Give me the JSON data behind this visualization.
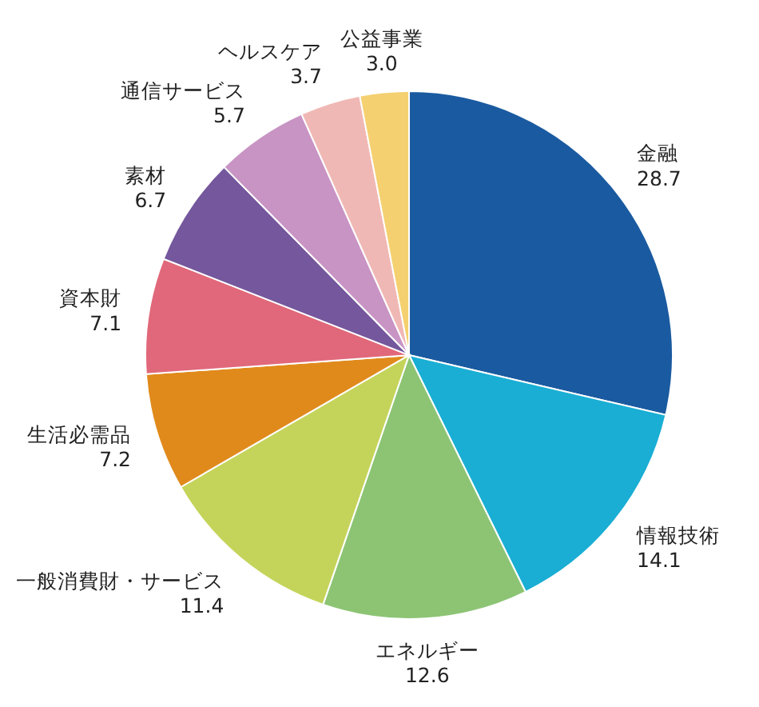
{
  "chart_data": {
    "type": "pie",
    "categories": [
      "金融",
      "情報技術",
      "エネルギー",
      "一般消費財・サービス",
      "生活必需品",
      "資本財",
      "素材",
      "通信サービス",
      "ヘルスケア",
      "公益事業"
    ],
    "values": [
      28.7,
      14.1,
      12.6,
      11.4,
      7.2,
      7.1,
      6.7,
      5.7,
      3.7,
      3.0
    ],
    "colors": [
      "#1a5aa0",
      "#1aaed4",
      "#8cc474",
      "#c4d45a",
      "#e08a1c",
      "#e0687a",
      "#74579c",
      "#c894c4",
      "#f0b8b4",
      "#f4d070"
    ],
    "value_labels": [
      "28.7",
      "14.1",
      "12.6",
      "11.4",
      "7.2",
      "7.1",
      "6.7",
      "5.7",
      "3.7",
      "3.0"
    ]
  }
}
